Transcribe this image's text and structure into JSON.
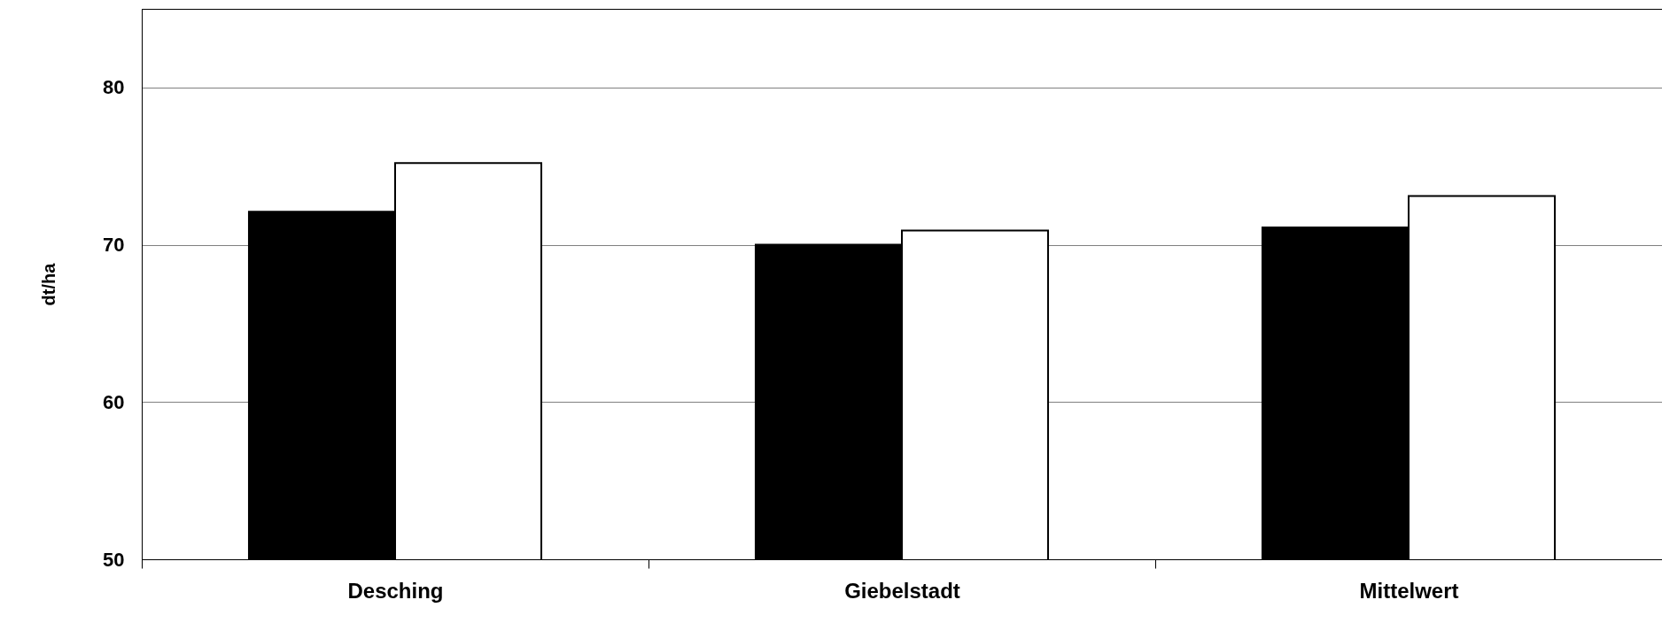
{
  "chart_data": {
    "type": "bar",
    "ylabel": "dt/ha",
    "categories": [
      "Desching",
      "Giebelstadt",
      "Mittelwert"
    ],
    "series": [
      {
        "color": "#000000",
        "values": [
          72.1,
          70.0,
          71.1
        ]
      },
      {
        "color": "#ffffff",
        "values": [
          75.2,
          70.9,
          73.1
        ]
      }
    ],
    "ylim": [
      50,
      85
    ],
    "yticks": [
      50,
      60,
      70,
      80
    ],
    "grid": "y"
  }
}
